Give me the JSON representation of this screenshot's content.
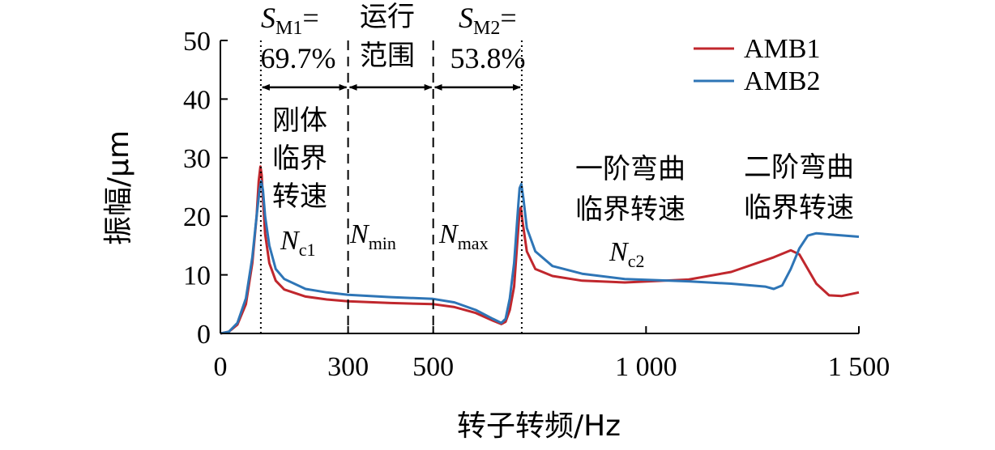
{
  "chart_data": {
    "type": "line",
    "xlabel": "转子转频/Hz",
    "ylabel": "振幅/μm",
    "xlim": [
      0,
      1500
    ],
    "ylim": [
      0,
      50
    ],
    "x_ticks": [
      0,
      300,
      500,
      1000,
      1500
    ],
    "x_tick_labels": [
      "0",
      "300",
      "500",
      "1 000",
      "1 500"
    ],
    "y_ticks": [
      0,
      10,
      20,
      30,
      40,
      50
    ],
    "y_tick_labels": [
      "0",
      "10",
      "20",
      "30",
      "40",
      "50"
    ],
    "grid": false,
    "legend_position": "top-right",
    "series": [
      {
        "name": "AMB1",
        "color": "#c0272d",
        "points": [
          [
            0,
            0
          ],
          [
            20,
            0.3
          ],
          [
            40,
            1.5
          ],
          [
            60,
            5
          ],
          [
            75,
            12
          ],
          [
            85,
            20
          ],
          [
            90,
            26
          ],
          [
            94,
            28.5
          ],
          [
            97,
            27
          ],
          [
            100,
            23
          ],
          [
            105,
            17
          ],
          [
            115,
            12
          ],
          [
            130,
            9
          ],
          [
            150,
            7.5
          ],
          [
            200,
            6.3
          ],
          [
            250,
            5.8
          ],
          [
            300,
            5.5
          ],
          [
            400,
            5.2
          ],
          [
            500,
            5.0
          ],
          [
            550,
            4.5
          ],
          [
            600,
            3.5
          ],
          [
            640,
            2.2
          ],
          [
            660,
            1.6
          ],
          [
            670,
            2
          ],
          [
            680,
            4
          ],
          [
            690,
            8
          ],
          [
            695,
            13
          ],
          [
            700,
            18
          ],
          [
            703,
            21
          ],
          [
            706,
            21.5
          ],
          [
            710,
            19
          ],
          [
            720,
            14
          ],
          [
            740,
            11
          ],
          [
            780,
            9.8
          ],
          [
            850,
            9
          ],
          [
            950,
            8.7
          ],
          [
            1100,
            9.2
          ],
          [
            1200,
            10.5
          ],
          [
            1300,
            13
          ],
          [
            1340,
            14.2
          ],
          [
            1360,
            13.5
          ],
          [
            1380,
            11
          ],
          [
            1400,
            8.5
          ],
          [
            1430,
            6.5
          ],
          [
            1460,
            6.4
          ],
          [
            1500,
            7
          ]
        ]
      },
      {
        "name": "AMB2",
        "color": "#2e75b6",
        "points": [
          [
            0,
            0
          ],
          [
            20,
            0.3
          ],
          [
            40,
            1.8
          ],
          [
            60,
            6
          ],
          [
            75,
            13
          ],
          [
            85,
            20
          ],
          [
            92,
            24.5
          ],
          [
            96,
            26
          ],
          [
            100,
            24.5
          ],
          [
            105,
            20
          ],
          [
            115,
            15
          ],
          [
            130,
            11
          ],
          [
            150,
            9.3
          ],
          [
            200,
            7.6
          ],
          [
            250,
            7.0
          ],
          [
            300,
            6.6
          ],
          [
            400,
            6.2
          ],
          [
            500,
            5.9
          ],
          [
            550,
            5.3
          ],
          [
            600,
            4.0
          ],
          [
            640,
            2.5
          ],
          [
            660,
            1.8
          ],
          [
            670,
            2.5
          ],
          [
            680,
            6
          ],
          [
            690,
            12
          ],
          [
            695,
            17
          ],
          [
            700,
            22
          ],
          [
            703,
            24.8
          ],
          [
            707,
            25.5
          ],
          [
            712,
            23
          ],
          [
            720,
            18
          ],
          [
            740,
            14
          ],
          [
            780,
            11.5
          ],
          [
            850,
            10.2
          ],
          [
            950,
            9.3
          ],
          [
            1100,
            8.9
          ],
          [
            1200,
            8.5
          ],
          [
            1280,
            8
          ],
          [
            1300,
            7.6
          ],
          [
            1320,
            8.2
          ],
          [
            1340,
            11
          ],
          [
            1360,
            14.5
          ],
          [
            1380,
            16.7
          ],
          [
            1400,
            17.1
          ],
          [
            1430,
            16.9
          ],
          [
            1500,
            16.5
          ]
        ]
      }
    ],
    "reference_lines": [
      {
        "x": 95,
        "style": "dotted",
        "label": "Nc1"
      },
      {
        "x": 300,
        "style": "dashed",
        "label": "Nmin"
      },
      {
        "x": 500,
        "style": "dashed",
        "label": "Nmax"
      },
      {
        "x": 708,
        "style": "dotted",
        "label": "Nc2"
      }
    ],
    "arrows": [
      {
        "from": 95,
        "to": 300,
        "y": 42
      },
      {
        "from": 300,
        "to": 500,
        "y": 42
      },
      {
        "from": 500,
        "to": 708,
        "y": 42
      }
    ],
    "annotations": {
      "sm1_symbol": "S",
      "sm1_sub": "M1",
      "sm1_eq": "=",
      "sm1_value": "69.7%",
      "run_range_1": "运行",
      "run_range_2": "范围",
      "sm2_symbol": "S",
      "sm2_sub": "M2",
      "sm2_eq": "=",
      "sm2_value": "53.8%",
      "rigid_1": "刚体",
      "rigid_2": "临界",
      "rigid_3": "转速",
      "first_bend_1": "一阶弯曲",
      "first_bend_2": "临界转速",
      "second_bend_1": "二阶弯曲",
      "second_bend_2": "临界转速",
      "nc1_symbol": "N",
      "nc1_sub": "c1",
      "nmin_symbol": "N",
      "nmin_sub": "min",
      "nmax_symbol": "N",
      "nmax_sub": "max",
      "nc2_symbol": "N",
      "nc2_sub": "c2"
    }
  }
}
